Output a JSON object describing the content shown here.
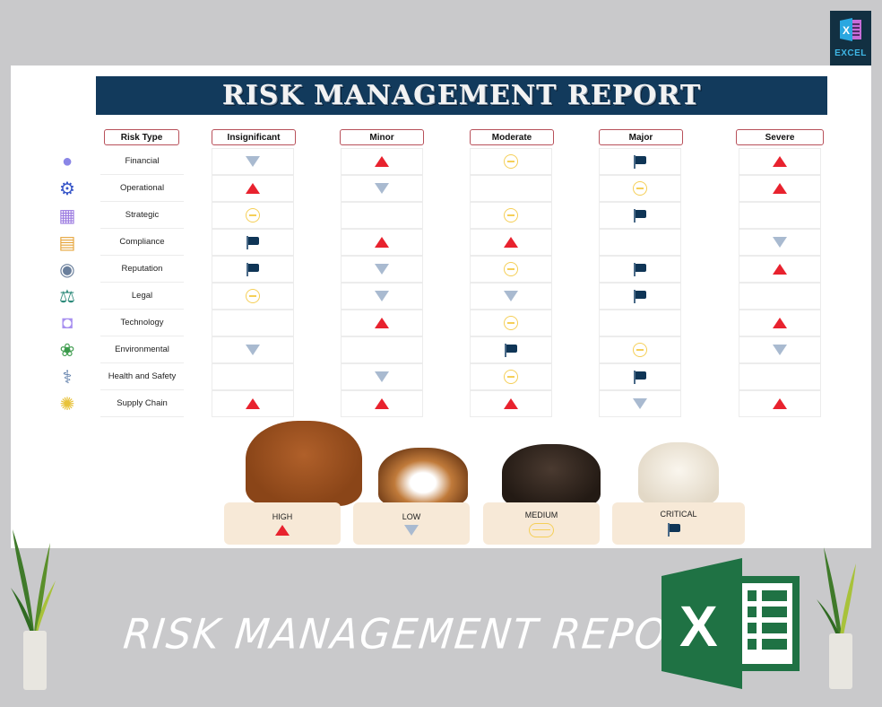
{
  "header": {
    "title": "RISK MANAGEMENT REPORT",
    "badge_label": "EXCEL"
  },
  "columns": {
    "risk_type": "Risk Type",
    "levels": [
      "Insignificant",
      "Minor",
      "Moderate",
      "Major",
      "Severe"
    ]
  },
  "rows": [
    {
      "label": "Financial",
      "icon": "money-bag-icon",
      "values": [
        "low",
        "high",
        "medium",
        "critical",
        "high"
      ]
    },
    {
      "label": "Operational",
      "icon": "gear-cycle-icon",
      "values": [
        "high",
        "low",
        "",
        "medium",
        "high"
      ]
    },
    {
      "label": "Strategic",
      "icon": "strategy-board-icon",
      "values": [
        "medium",
        "",
        "medium",
        "critical",
        ""
      ]
    },
    {
      "label": "Compliance",
      "icon": "clipboard-clock-icon",
      "values": [
        "critical",
        "high",
        "high",
        "",
        "low"
      ]
    },
    {
      "label": "Reputation",
      "icon": "reputation-icon",
      "values": [
        "critical",
        "low",
        "medium",
        "critical",
        "high"
      ]
    },
    {
      "label": "Legal",
      "icon": "scales-books-icon",
      "values": [
        "medium",
        "low",
        "low",
        "critical",
        ""
      ]
    },
    {
      "label": "Technology",
      "icon": "robot-icon",
      "values": [
        "",
        "high",
        "medium",
        "",
        "high"
      ]
    },
    {
      "label": "Environmental",
      "icon": "plant-gear-icon",
      "values": [
        "low",
        "",
        "critical",
        "medium",
        "low"
      ]
    },
    {
      "label": "Health and Safety",
      "icon": "stethoscope-icon",
      "values": [
        "",
        "low",
        "medium",
        "critical",
        ""
      ]
    },
    {
      "label": "Supply Chain",
      "icon": "package-cycle-icon",
      "values": [
        "high",
        "high",
        "high",
        "low",
        "high"
      ]
    }
  ],
  "legend": [
    {
      "key": "high",
      "label": "HIGH",
      "symbol": "red-up-triangle"
    },
    {
      "key": "low",
      "label": "LOW",
      "symbol": "gray-down-triangle"
    },
    {
      "key": "medium",
      "label": "MEDIUM",
      "symbol": "yellow-circle-minus"
    },
    {
      "key": "critical",
      "label": "CRITICAL",
      "symbol": "navy-flag"
    }
  ],
  "colors": {
    "title_bg": "#123a5c",
    "header_border": "#b8505a",
    "high": "#e8222e",
    "low": "#a9bad0",
    "medium": "#f5cf58",
    "critical": "#0f3556",
    "legend_card": "#f7e9d7",
    "page_bg": "#c9c9cb",
    "excel_green": "#1f7244"
  },
  "footer": {
    "title": "RISK MANAGEMENT REPORT"
  }
}
